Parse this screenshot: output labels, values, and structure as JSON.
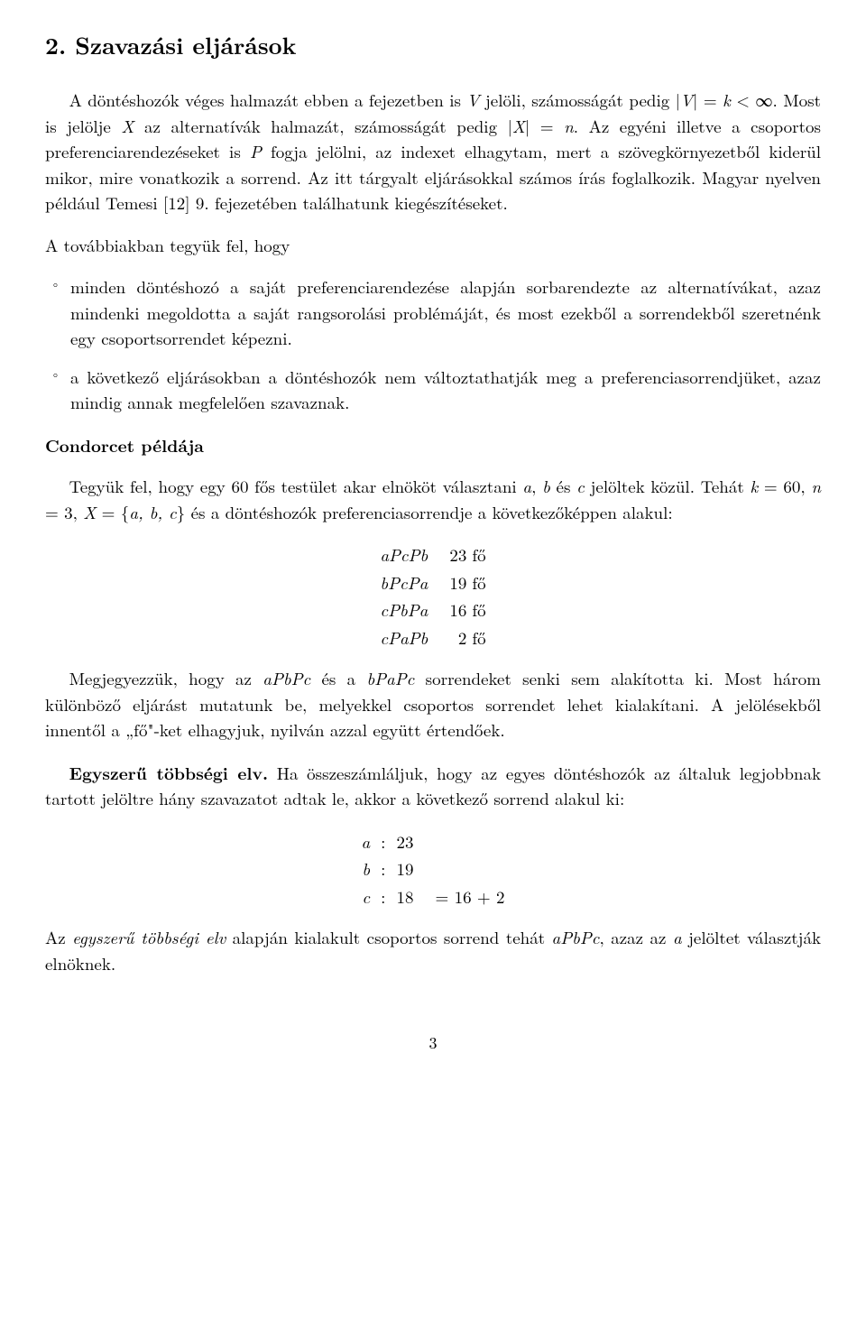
{
  "heading": "2. Szavazási eljárások",
  "para1_a": "A döntéshozók véges halmazát ebben a fejezetben is ",
  "para1_V": "V",
  "para1_b": " jelöli, számosságát pedig |",
  "para1_c": "| = ",
  "para1_k": "k",
  "para1_d": " < ∞. Most is jelölje ",
  "para1_X": "X",
  "para1_e": " az alternatívák halmazát, számosságát pedig |",
  "para1_f": "| = ",
  "para1_n": "n",
  "para1_g": ". Az egyéni illetve a csoportos preferenciarendezéseket is ",
  "para1_P": "P",
  "para1_h": " fogja jelölni, az indexet elhagytam, mert a szövegkörnyezetből kiderül mikor, mire vonatkozik a sorrend. Az itt tárgyalt eljárásokkal számos írás foglalkozik. Magyar nyelven például Temesi [12] 9. fejezetében találhatunk kiegészítéseket.",
  "para2": "A továbbiakban tegyük fel, hogy",
  "bullet1": "minden döntéshozó a saját preferenciarendezése alapján sorbarendezte az alternatívákat, azaz mindenki megoldotta a saját rangsorolási problémáját, és most ezekből a sorrendekből szeretnénk egy csoportsorrendet képezni.",
  "bullet2": "a következő eljárásokban a döntéshozók nem változtathatják meg a preferenciasorrendjüket, azaz mindig annak megfelelően szavaznak.",
  "subheading1": "Condorcet példája",
  "para3_a": "Tegyük fel, hogy egy 60 fős testület akar elnököt választani ",
  "para3_b": " és ",
  "para3_c": " jelöltek közül. Tehát ",
  "para3_kdef": " = 60, ",
  "para3_ndef": " = 3, ",
  "para3_Xdef": " = {",
  "para3_set": "a, b, c",
  "para3_d": "} és a döntéshozók preferenciasorrendje a következőképpen alakul:",
  "prefs": [
    {
      "order": "aPcPb",
      "count": "23",
      "unit": "fő"
    },
    {
      "order": "bPcPa",
      "count": "19",
      "unit": "fő"
    },
    {
      "order": "cPbPa",
      "count": "16",
      "unit": "fő"
    },
    {
      "order": "cPaPb",
      "count": "2",
      "unit": "fő"
    }
  ],
  "para4_a": "Megjegyezzük, hogy az ",
  "para4_o1": "aPbPc",
  "para4_b": " és a ",
  "para4_o2": "bPaPc",
  "para4_c": " sorrendeket senki sem alakította ki. Most három különböző eljárást mutatunk be, melyekkel csoportos sorrendet lehet kialakítani. A jelölésekből innentől a „fő\"-ket elhagyjuk, nyilván azzal együtt értendőek.",
  "para5_head": "Egyszerű többségi elv.",
  "para5_body": " Ha összeszámláljuk, hogy az egyes döntéshozók az általuk legjobbnak tartott jelöltre hány szavazatot adtak le, akkor a következő sorrend alakul ki:",
  "votes": [
    {
      "sym": "a",
      "val": "23",
      "expr": ""
    },
    {
      "sym": "b",
      "val": "19",
      "expr": ""
    },
    {
      "sym": "c",
      "val": "18",
      "expr": "= 16 + 2"
    }
  ],
  "para6_a": "Az ",
  "para6_term": "egyszerű többségi elv",
  "para6_b": " alapján kialakult csoportos sorrend tehát ",
  "para6_order": "aPbPc",
  "para6_c": ", azaz az ",
  "para6_a2": "a",
  "para6_d": " jelöltet választják elnöknek.",
  "pagenum": "3",
  "sym_a": "a",
  "sym_b": "b",
  "sym_c": "c",
  "sym_k": "k",
  "sym_n": "n",
  "sym_X": "X",
  "sym_V": "V"
}
